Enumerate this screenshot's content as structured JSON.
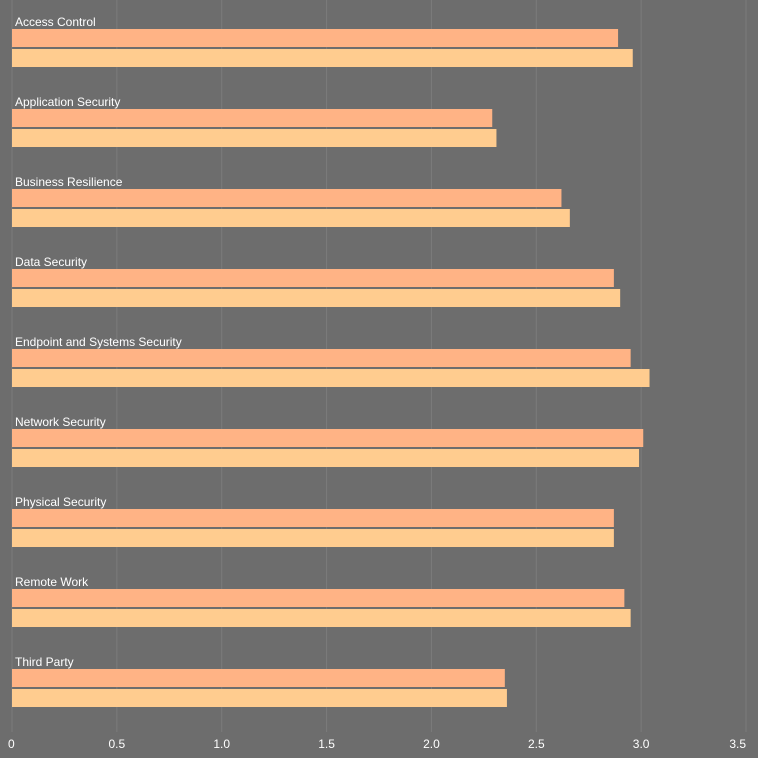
{
  "chart_data": {
    "type": "bar",
    "orientation": "horizontal",
    "categories": [
      "Access Control",
      "Application Security",
      "Business Resilience",
      "Data Security",
      "Endpoint and Systems Security",
      "Network Security",
      "Physical Security",
      "Remote Work",
      "Third Party"
    ],
    "series": [
      {
        "values": [
          2.89,
          2.29,
          2.62,
          2.87,
          2.95,
          3.01,
          2.87,
          2.92,
          2.35
        ],
        "color": "#ffb385"
      },
      {
        "values": [
          2.96,
          2.31,
          2.66,
          2.9,
          3.04,
          2.99,
          2.87,
          2.95,
          2.36
        ],
        "color": "#ffcc8f"
      }
    ],
    "x_ticks": [
      "0",
      "0.5",
      "1.0",
      "1.5",
      "2.0",
      "2.5",
      "3.0",
      "3.5"
    ],
    "xlim": [
      0,
      3.5
    ],
    "grid": true,
    "legend": "none",
    "title": "",
    "xlabel": "",
    "ylabel": ""
  },
  "colors": {
    "background": "#6d6d6d",
    "grid": "#7b7b7b",
    "text": "#ffffff"
  }
}
